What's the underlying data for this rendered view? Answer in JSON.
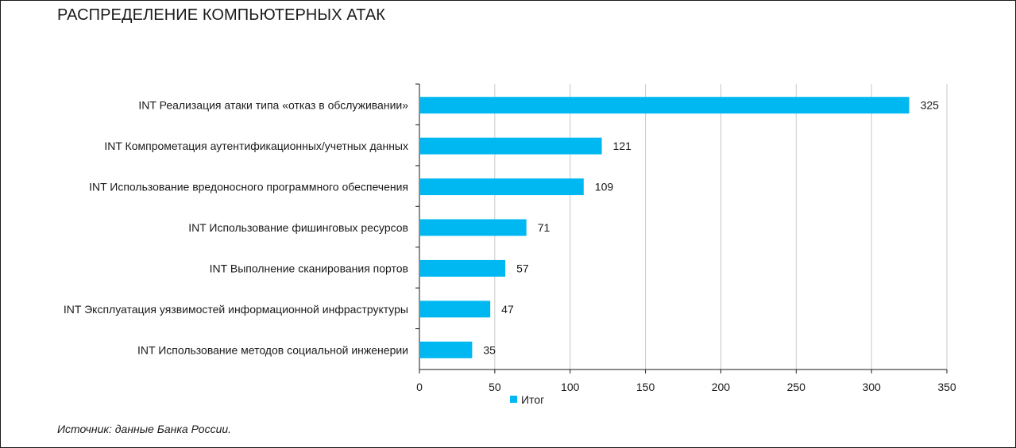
{
  "title": "РАСПРЕДЕЛЕНИЕ КОМПЬЮТЕРНЫХ АТАК",
  "source": "Источник: данные Банка России.",
  "colors": {
    "bar": "#00b8f1",
    "grid": "#c8c8c8",
    "axis": "#1a1a1a"
  },
  "chart_data": {
    "type": "bar",
    "orientation": "horizontal",
    "categories": [
      "INT Реализация атаки типа «отказ в обслуживании»",
      "INT Компрометация аутентификационных/учетных данных",
      "INT Использование вредоносного программного обеспечения",
      "INT Использование фишинговых ресурсов",
      "INT Выполнение сканирования портов",
      "INT Эксплуатация уязвимостей информационной инфраструктуры",
      "INT Использование методов социальной инженерии"
    ],
    "series": [
      {
        "name": "Итог",
        "values": [
          325,
          121,
          109,
          71,
          57,
          47,
          35
        ]
      }
    ],
    "xlim": [
      0,
      350
    ],
    "xticks": [
      "0",
      "50",
      "100",
      "150",
      "200",
      "250",
      "300",
      "350"
    ],
    "xlabel": "",
    "ylabel": "",
    "grid": true,
    "legend_position": "bottom"
  }
}
